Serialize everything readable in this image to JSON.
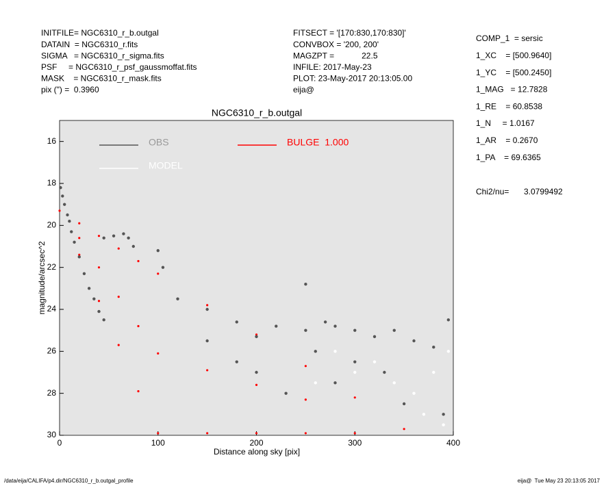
{
  "header": {
    "left": [
      "INITFILE= NGC6310_r_b.outgal",
      "DATAIN  = NGC6310_r.fits",
      "SIGMA   = NGC6310_r_sigma.fits",
      "PSF     = NGC6310_r_psf_gaussmoffat.fits",
      "MASK    = NGC6310_r_mask.fits",
      "pix (\") =  0.3960"
    ],
    "middle": [
      "FITSECT = '[170:830,170:830]'",
      "CONVBOX = '200, 200'",
      "MAGZPT =            22.5",
      "INFILE: 2017-May-23",
      "PLOT: 23-May-2017 20:13:05.00",
      "eija@"
    ],
    "right": [
      "COMP_1  = sersic",
      "1_XC    = [500.9640]",
      "1_YC    = [500.2450]",
      "1_MAG   = 12.7828",
      "1_RE    = 60.8538",
      "1_N     = 1.0167",
      "1_AR    = 0.2670",
      "1_PA    = 69.6365"
    ],
    "chi2": [
      "Chi2/nu=",
      "3.0799492"
    ]
  },
  "footer": {
    "path": "/data/eija/CALIFA/p4.dir/NGC6310_r_b.outgal_profile",
    "stamp": "eija@  Tue May 23 20:13:05 2017"
  },
  "chart_data": {
    "type": "scatter",
    "title": "NGC6310_r_b.outgal",
    "x_label": "Distance along sky [pix]",
    "y_label": "magnitude/arcsec^2",
    "xlim": [
      0,
      400
    ],
    "ylim": [
      15,
      30
    ],
    "y_inverted": true,
    "xticks": [
      0,
      100,
      200,
      300,
      400
    ],
    "yticks": [
      16,
      18,
      20,
      22,
      24,
      26,
      28,
      30
    ],
    "background": "#e5e5e5",
    "series": [
      {
        "name": "OBS",
        "color": "#555555",
        "x": [
          1,
          3,
          5,
          8,
          10,
          12,
          15,
          20,
          25,
          30,
          35,
          40,
          45,
          45,
          55,
          65,
          70,
          75,
          100,
          105,
          250,
          120,
          150,
          180,
          200,
          220,
          250,
          270,
          280,
          300,
          320,
          340,
          360,
          380,
          395,
          260,
          300,
          330,
          280,
          350,
          390,
          150,
          180,
          200,
          230
        ],
        "values": [
          18.2,
          18.6,
          19.0,
          19.5,
          19.8,
          20.3,
          20.8,
          21.5,
          22.3,
          23.0,
          23.5,
          24.1,
          24.5,
          20.6,
          20.5,
          20.4,
          20.6,
          21.0,
          21.2,
          22.0,
          22.8,
          23.5,
          24.0,
          24.6,
          25.3,
          24.8,
          25.0,
          24.6,
          24.8,
          25.0,
          25.3,
          25.0,
          25.5,
          25.8,
          24.5,
          26.0,
          26.5,
          27.0,
          27.5,
          28.5,
          29.0,
          25.5,
          26.5,
          27.0,
          28.0
        ]
      },
      {
        "name": "MODEL",
        "color": "#ffffff",
        "x": [
          260,
          280,
          300,
          320,
          340,
          360,
          370,
          380,
          390,
          395
        ],
        "values": [
          27.5,
          26.0,
          27.0,
          26.5,
          27.5,
          28.0,
          29.0,
          27.0,
          29.5,
          26.0
        ]
      },
      {
        "name": "BULGE  1.000",
        "color": "#ff0000",
        "x": [
          0,
          20,
          20,
          20,
          40,
          40,
          40,
          60,
          60,
          60,
          80,
          80,
          80,
          100,
          100,
          100,
          150,
          150,
          150,
          200,
          200,
          200,
          250,
          250,
          250,
          300,
          300,
          350
        ],
        "values": [
          19.3,
          19.9,
          20.6,
          21.4,
          20.5,
          22.0,
          23.6,
          21.1,
          23.4,
          25.7,
          21.7,
          24.8,
          27.9,
          22.3,
          26.1,
          29.9,
          23.8,
          26.9,
          29.9,
          25.2,
          27.6,
          29.9,
          26.7,
          28.3,
          29.9,
          28.2,
          29.9,
          29.7
        ]
      }
    ]
  }
}
